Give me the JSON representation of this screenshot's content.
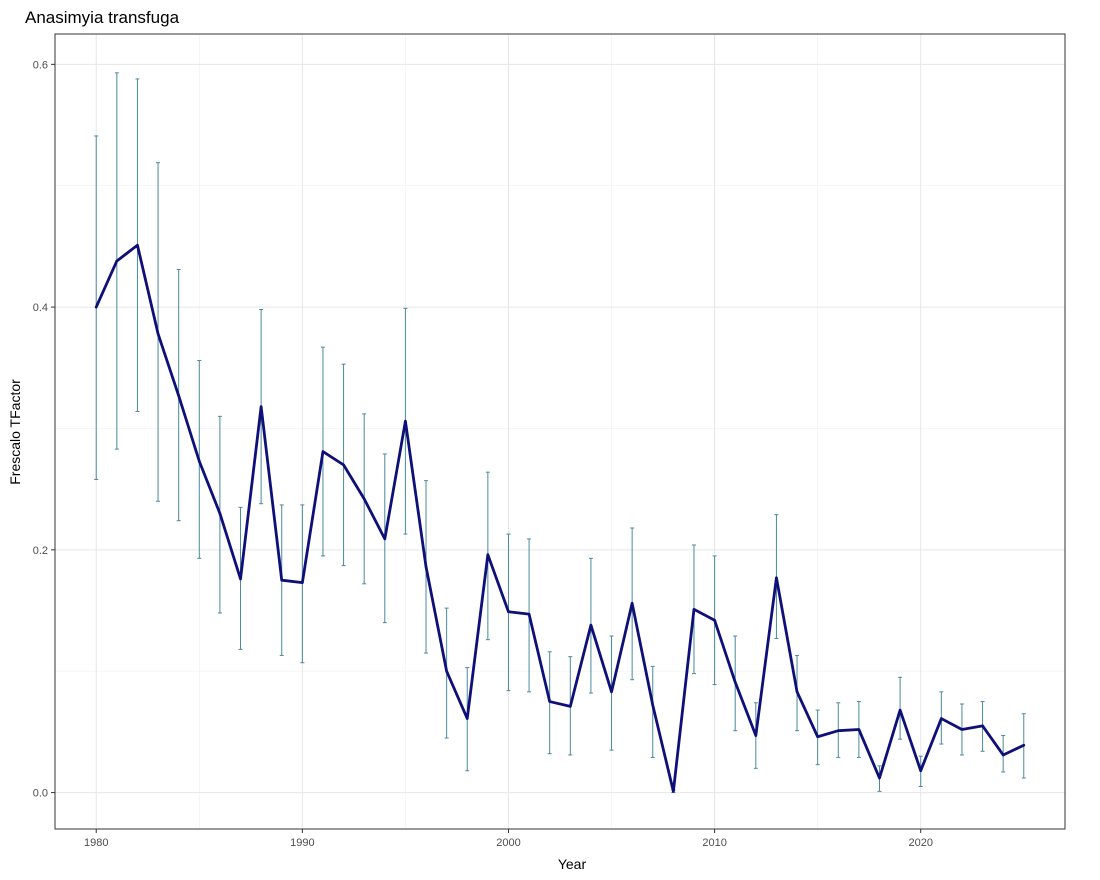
{
  "chart_data": {
    "type": "line",
    "title": "Anasimyia transfuga",
    "xlabel": "Year",
    "ylabel": "Frescalo TFactor",
    "xlim": [
      1978,
      2027
    ],
    "ylim": [
      -0.03,
      0.625
    ],
    "x_ticks": [
      1980,
      1990,
      2000,
      2010,
      2020
    ],
    "y_ticks": [
      0.0,
      0.2,
      0.4,
      0.6
    ],
    "y_tick_labels": [
      "0.0",
      "0.2",
      "0.4",
      "0.6"
    ],
    "grid": true,
    "line_color": "#0f0f7a",
    "errorbar_color": "#4a8a9a",
    "series": [
      {
        "x": [
          1980,
          1981,
          1982,
          1983,
          1984,
          1985,
          1986,
          1987,
          1988,
          1989,
          1990,
          1991,
          1992,
          1993,
          1994,
          1995,
          1996,
          1997,
          1998,
          1999,
          2000,
          2001,
          2002,
          2003,
          2004,
          2005,
          2006,
          2007,
          2008,
          2009,
          2010,
          2011,
          2012,
          2013,
          2014,
          2015,
          2016,
          2017,
          2018,
          2019,
          2020,
          2021,
          2022,
          2023,
          2024,
          2025
        ],
        "y": [
          0.4,
          0.438,
          0.451,
          0.378,
          0.327,
          0.273,
          0.23,
          0.176,
          0.318,
          0.175,
          0.173,
          0.281,
          0.27,
          0.242,
          0.209,
          0.306,
          0.186,
          0.1,
          0.061,
          0.196,
          0.149,
          0.147,
          0.075,
          0.071,
          0.138,
          0.083,
          0.156,
          0.072,
          0.001,
          0.151,
          0.142,
          0.091,
          0.047,
          0.177,
          0.083,
          0.046,
          0.051,
          0.052,
          0.012,
          0.068,
          0.018,
          0.061,
          0.052,
          0.055,
          0.031,
          0.039
        ],
        "lower": [
          0.258,
          0.283,
          0.314,
          0.24,
          0.224,
          0.193,
          0.148,
          0.118,
          0.238,
          0.113,
          0.107,
          0.195,
          0.187,
          0.172,
          0.14,
          0.213,
          0.115,
          0.045,
          0.018,
          0.126,
          0.084,
          0.083,
          0.032,
          0.031,
          0.082,
          0.035,
          0.093,
          0.029,
          0.0,
          0.098,
          0.089,
          0.051,
          0.02,
          0.127,
          0.051,
          0.023,
          0.029,
          0.029,
          0.001,
          0.044,
          0.005,
          0.04,
          0.031,
          0.034,
          0.017,
          0.012
        ],
        "upper": [
          0.541,
          0.593,
          0.588,
          0.519,
          0.431,
          0.356,
          0.31,
          0.235,
          0.398,
          0.237,
          0.237,
          0.367,
          0.353,
          0.312,
          0.279,
          0.399,
          0.257,
          0.152,
          0.103,
          0.264,
          0.213,
          0.209,
          0.116,
          0.112,
          0.193,
          0.129,
          0.218,
          0.104,
          0.002,
          0.204,
          0.195,
          0.129,
          0.074,
          0.229,
          0.113,
          0.068,
          0.074,
          0.075,
          0.022,
          0.095,
          0.03,
          0.083,
          0.073,
          0.075,
          0.047,
          0.065
        ]
      }
    ]
  }
}
